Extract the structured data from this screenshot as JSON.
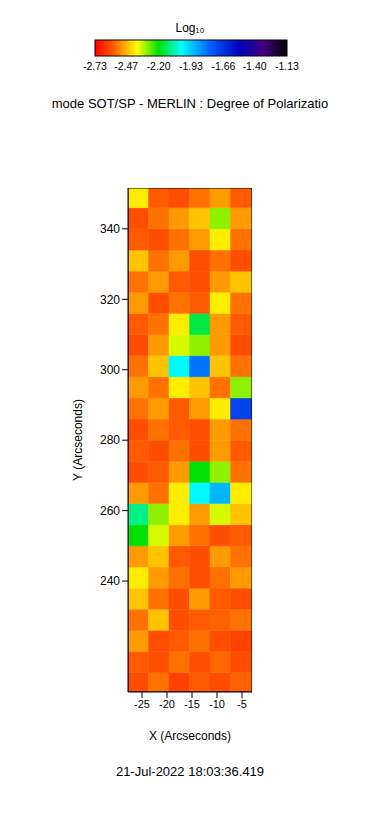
{
  "chart_data": {
    "type": "heatmap",
    "title": "mode SOT/SP - MERLIN : Degree of Polarizatio",
    "x_label": "X (Arcseconds)",
    "y_label": "Y (Arcseconds)",
    "xlim": [
      -27.8,
      -3
    ],
    "ylim": [
      208.5,
      351.6
    ],
    "xticks": [
      -25,
      -20,
      -15,
      -10,
      -5
    ],
    "yticks": [
      240,
      260,
      280,
      300,
      320,
      340
    ],
    "x_edges": [
      -27.8,
      -23.7,
      -19.6,
      -15.5,
      -11.4,
      -7.3,
      -3
    ],
    "y_edges": [
      208.5,
      214,
      220,
      226,
      232,
      238,
      244,
      250,
      256,
      262,
      268,
      274,
      280,
      286,
      292,
      298,
      304,
      310,
      316,
      322,
      328,
      334,
      340,
      346,
      351.6
    ],
    "cells": [
      [
        -2.6,
        -2.55,
        -2.62,
        -2.58,
        -2.6,
        -2.57
      ],
      [
        -2.58,
        -2.6,
        -2.55,
        -2.6,
        -2.56,
        -2.6
      ],
      [
        -2.5,
        -2.6,
        -2.58,
        -2.55,
        -2.6,
        -2.62
      ],
      [
        -2.55,
        -2.45,
        -2.6,
        -2.58,
        -2.57,
        -2.55
      ],
      [
        -2.45,
        -2.55,
        -2.6,
        -2.5,
        -2.58,
        -2.6
      ],
      [
        -2.4,
        -2.5,
        -2.55,
        -2.6,
        -2.55,
        -2.5
      ],
      [
        -2.5,
        -2.45,
        -2.58,
        -2.6,
        -2.5,
        -2.55
      ],
      [
        -2.2,
        -2.35,
        -2.5,
        -2.55,
        -2.6,
        -2.58
      ],
      [
        -2.1,
        -2.3,
        -2.4,
        -2.5,
        -2.35,
        -2.45
      ],
      [
        -2.5,
        -2.55,
        -2.4,
        -2.0,
        -1.9,
        -2.4
      ],
      [
        -2.6,
        -2.58,
        -2.5,
        -2.2,
        -2.3,
        -2.55
      ],
      [
        -2.58,
        -2.6,
        -2.55,
        -2.6,
        -2.5,
        -2.58
      ],
      [
        -2.6,
        -2.55,
        -2.58,
        -2.6,
        -2.5,
        -2.55
      ],
      [
        -2.55,
        -2.5,
        -2.58,
        -2.5,
        -2.4,
        -1.7
      ],
      [
        -2.5,
        -2.55,
        -2.4,
        -2.45,
        -2.55,
        -2.3
      ],
      [
        -2.55,
        -2.45,
        -2.0,
        -1.8,
        -2.45,
        -2.55
      ],
      [
        -2.6,
        -2.5,
        -2.35,
        -2.3,
        -2.5,
        -2.6
      ],
      [
        -2.58,
        -2.55,
        -2.4,
        -2.15,
        -2.5,
        -2.58
      ],
      [
        -2.5,
        -2.6,
        -2.55,
        -2.58,
        -2.4,
        -2.55
      ],
      [
        -2.55,
        -2.5,
        -2.58,
        -2.6,
        -2.5,
        -2.45
      ],
      [
        -2.45,
        -2.55,
        -2.5,
        -2.6,
        -2.55,
        -2.6
      ],
      [
        -2.58,
        -2.6,
        -2.55,
        -2.5,
        -2.4,
        -2.55
      ],
      [
        -2.6,
        -2.55,
        -2.5,
        -2.45,
        -2.3,
        -2.5
      ],
      [
        -2.4,
        -2.58,
        -2.6,
        -2.55,
        -2.5,
        -2.58
      ]
    ],
    "colorbar": {
      "title": "Log₁₀",
      "range": [
        -2.73,
        -1.13
      ],
      "ticks": [
        -2.73,
        -2.47,
        {
          "value": -2.2,
          "label": "-2.20"
        },
        -1.93,
        -1.66,
        {
          "value": -1.4,
          "label": "-1.40"
        },
        -1.13
      ]
    },
    "annotations": [
      "21-Jul-2022 18:03:36.419"
    ]
  }
}
